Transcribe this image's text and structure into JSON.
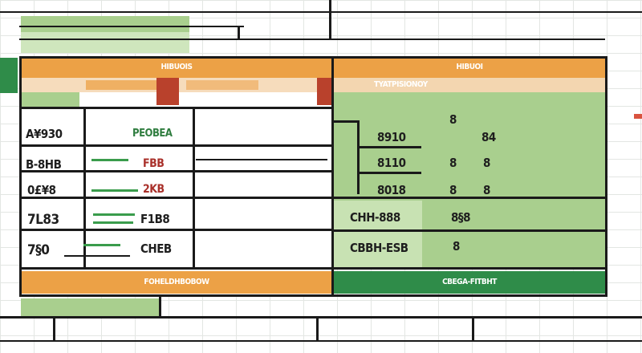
{
  "window": {
    "title": ""
  },
  "left_panel": {
    "header": "HIBUOIS",
    "subheader": "",
    "column_left_label": "A¥930",
    "column_right_label": "PEOBEA",
    "rows": [
      {
        "left": "B-8HB",
        "right": "FBB"
      },
      {
        "left": "0£¥8",
        "right": "2KB"
      },
      {
        "left": "7L83",
        "right": "F1B8"
      },
      {
        "left": "7§0",
        "right": "CHEB"
      }
    ],
    "footer": "FOHELDHBOBOW"
  },
  "right_panel": {
    "header": "HIBUOI",
    "subheader": "TYATPISIONOY",
    "rows": [
      {
        "label": "8910",
        "mid": "8",
        "right": "84"
      },
      {
        "label": "8110",
        "mid": "8",
        "right": "8"
      },
      {
        "label": "8018",
        "mid": "8",
        "right": "8"
      },
      {
        "label": "CHH-888",
        "mid": "8§8",
        "right": ""
      },
      {
        "label": "CBBH-ESB",
        "mid": "8",
        "right": ""
      }
    ],
    "footer": "CBEGA-FITBHT"
  },
  "colors": {
    "header_orange": "#eca146",
    "accent_green": "#2f8c49",
    "panel_green": "#a9cf8e",
    "text_red": "#a9302a"
  }
}
